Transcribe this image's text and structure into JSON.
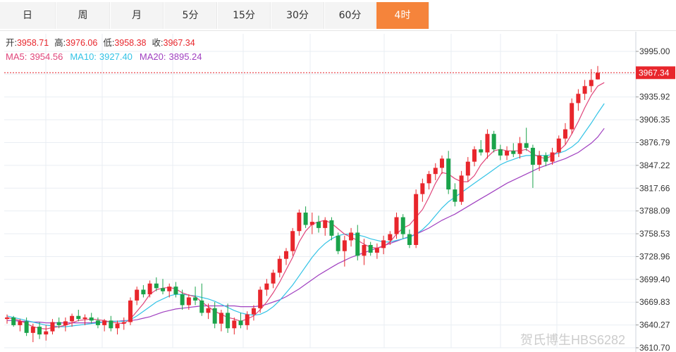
{
  "tabs": [
    {
      "label": "日",
      "active": false
    },
    {
      "label": "周",
      "active": false
    },
    {
      "label": "月",
      "active": false
    },
    {
      "label": "5分",
      "active": false
    },
    {
      "label": "15分",
      "active": false
    },
    {
      "label": "30分",
      "active": false
    },
    {
      "label": "60分",
      "active": false
    },
    {
      "label": "4时",
      "active": true
    }
  ],
  "ohlc_line": {
    "open_label": "开:",
    "open_value": "3958.71",
    "high_label": "高:",
    "high_value": "3976.06",
    "low_label": "低:",
    "low_value": "3958.38",
    "close_label": "收:",
    "close_value": "3967.34"
  },
  "ma_line": {
    "ma5_label": "MA5:",
    "ma5_value": "3954.56",
    "ma10_label": "MA10:",
    "ma10_value": "3927.40",
    "ma20_label": "MA20:",
    "ma20_value": "3895.24"
  },
  "current_price_label": "3967.34",
  "watermark": "贺氏博生HBS6282",
  "colors": {
    "up": "#e8262c",
    "down": "#1aa34a",
    "ma5": "#e0457b",
    "ma10": "#33c3e6",
    "ma20": "#a040c0",
    "active_tab": "#f5843b",
    "grid": "#e9eef3"
  },
  "chart_data": {
    "type": "candlestick",
    "y_ticks": [
      "3995.00",
      "3965.51",
      "3935.92",
      "3906.35",
      "3876.79",
      "3847.22",
      "3817.66",
      "3788.09",
      "3758.53",
      "3728.96",
      "3699.40",
      "3669.83",
      "3640.27",
      "3610.70"
    ],
    "ylim": [
      3610.7,
      3995.0
    ],
    "current_price": 3967.34,
    "candles": [
      [
        3648,
        3654,
        3642,
        3650
      ],
      [
        3650,
        3652,
        3638,
        3640
      ],
      [
        3640,
        3648,
        3632,
        3645
      ],
      [
        3645,
        3650,
        3626,
        3630
      ],
      [
        3630,
        3642,
        3618,
        3638
      ],
      [
        3638,
        3644,
        3622,
        3628
      ],
      [
        3628,
        3640,
        3620,
        3632
      ],
      [
        3632,
        3648,
        3628,
        3644
      ],
      [
        3644,
        3650,
        3636,
        3640
      ],
      [
        3640,
        3650,
        3632,
        3645
      ],
      [
        3645,
        3655,
        3638,
        3652
      ],
      [
        3652,
        3660,
        3645,
        3648
      ],
      [
        3648,
        3654,
        3640,
        3650
      ],
      [
        3650,
        3656,
        3642,
        3646
      ],
      [
        3646,
        3650,
        3636,
        3640
      ],
      [
        3640,
        3648,
        3632,
        3646
      ],
      [
        3646,
        3652,
        3632,
        3636
      ],
      [
        3636,
        3646,
        3628,
        3642
      ],
      [
        3642,
        3650,
        3634,
        3644
      ],
      [
        3644,
        3676,
        3640,
        3672
      ],
      [
        3672,
        3690,
        3666,
        3686
      ],
      [
        3686,
        3692,
        3676,
        3680
      ],
      [
        3680,
        3698,
        3676,
        3694
      ],
      [
        3694,
        3702,
        3684,
        3688
      ],
      [
        3688,
        3700,
        3680,
        3684
      ],
      [
        3684,
        3694,
        3676,
        3690
      ],
      [
        3690,
        3696,
        3676,
        3680
      ],
      [
        3680,
        3686,
        3660,
        3666
      ],
      [
        3666,
        3680,
        3660,
        3676
      ],
      [
        3676,
        3690,
        3666,
        3672
      ],
      [
        3672,
        3694,
        3652,
        3656
      ],
      [
        3656,
        3668,
        3648,
        3662
      ],
      [
        3662,
        3670,
        3636,
        3642
      ],
      [
        3642,
        3660,
        3632,
        3656
      ],
      [
        3656,
        3668,
        3630,
        3636
      ],
      [
        3636,
        3650,
        3628,
        3646
      ],
      [
        3646,
        3656,
        3636,
        3640
      ],
      [
        3640,
        3658,
        3634,
        3654
      ],
      [
        3654,
        3666,
        3646,
        3662
      ],
      [
        3662,
        3690,
        3656,
        3686
      ],
      [
        3686,
        3700,
        3678,
        3694
      ],
      [
        3694,
        3712,
        3688,
        3708
      ],
      [
        3708,
        3730,
        3702,
        3726
      ],
      [
        3726,
        3740,
        3718,
        3736
      ],
      [
        3736,
        3766,
        3730,
        3762
      ],
      [
        3762,
        3790,
        3756,
        3786
      ],
      [
        3786,
        3794,
        3766,
        3770
      ],
      [
        3770,
        3786,
        3758,
        3774
      ],
      [
        3774,
        3782,
        3760,
        3766
      ],
      [
        3766,
        3780,
        3756,
        3776
      ],
      [
        3776,
        3780,
        3750,
        3756
      ],
      [
        3756,
        3760,
        3732,
        3736
      ],
      [
        3736,
        3756,
        3716,
        3750
      ],
      [
        3750,
        3766,
        3742,
        3760
      ],
      [
        3760,
        3770,
        3724,
        3730
      ],
      [
        3730,
        3752,
        3718,
        3744
      ],
      [
        3744,
        3748,
        3730,
        3734
      ],
      [
        3734,
        3746,
        3726,
        3740
      ],
      [
        3740,
        3756,
        3732,
        3750
      ],
      [
        3750,
        3762,
        3744,
        3758
      ],
      [
        3758,
        3786,
        3752,
        3780
      ],
      [
        3780,
        3784,
        3752,
        3758
      ],
      [
        3758,
        3764,
        3740,
        3744
      ],
      [
        3744,
        3816,
        3740,
        3810
      ],
      [
        3810,
        3830,
        3800,
        3824
      ],
      [
        3824,
        3840,
        3816,
        3836
      ],
      [
        3836,
        3850,
        3828,
        3844
      ],
      [
        3844,
        3860,
        3836,
        3856
      ],
      [
        3856,
        3866,
        3810,
        3816
      ],
      [
        3816,
        3824,
        3794,
        3800
      ],
      [
        3800,
        3840,
        3796,
        3834
      ],
      [
        3834,
        3858,
        3826,
        3852
      ],
      [
        3852,
        3872,
        3846,
        3868
      ],
      [
        3868,
        3880,
        3860,
        3864
      ],
      [
        3864,
        3894,
        3856,
        3888
      ],
      [
        3888,
        3892,
        3864,
        3868
      ],
      [
        3868,
        3874,
        3854,
        3860
      ],
      [
        3860,
        3872,
        3854,
        3866
      ],
      [
        3866,
        3876,
        3858,
        3862
      ],
      [
        3862,
        3884,
        3856,
        3876
      ],
      [
        3876,
        3896,
        3866,
        3870
      ],
      [
        3870,
        3874,
        3818,
        3848
      ],
      [
        3848,
        3866,
        3840,
        3860
      ],
      [
        3860,
        3864,
        3846,
        3852
      ],
      [
        3852,
        3870,
        3848,
        3864
      ],
      [
        3864,
        3886,
        3858,
        3882
      ],
      [
        3882,
        3902,
        3874,
        3894
      ],
      [
        3894,
        3934,
        3888,
        3928
      ],
      [
        3928,
        3946,
        3918,
        3940
      ],
      [
        3940,
        3958,
        3932,
        3950
      ],
      [
        3950,
        3972,
        3942,
        3958
      ],
      [
        3958.71,
        3976.06,
        3958.38,
        3967.34
      ]
    ],
    "ma5": [
      3650,
      3648,
      3646,
      3642,
      3638,
      3636,
      3635,
      3637,
      3638,
      3640,
      3643,
      3646,
      3647,
      3648,
      3647,
      3646,
      3644,
      3643,
      3642,
      3648,
      3658,
      3668,
      3680,
      3686,
      3688,
      3689,
      3687,
      3682,
      3679,
      3677,
      3670,
      3664,
      3658,
      3654,
      3650,
      3648,
      3645,
      3648,
      3652,
      3660,
      3670,
      3682,
      3696,
      3712,
      3728,
      3748,
      3762,
      3771,
      3774,
      3776,
      3772,
      3765,
      3758,
      3754,
      3750,
      3745,
      3741,
      3740,
      3742,
      3748,
      3758,
      3766,
      3770,
      3780,
      3790,
      3806,
      3824,
      3838,
      3836,
      3830,
      3826,
      3826,
      3834,
      3848,
      3858,
      3866,
      3868,
      3866,
      3866,
      3866,
      3868,
      3862,
      3858,
      3856,
      3860,
      3866,
      3874,
      3888,
      3904,
      3922,
      3938,
      3950,
      3954.56
    ],
    "ma10": [
      3652,
      3650,
      3648,
      3646,
      3644,
      3642,
      3640,
      3639,
      3638,
      3638,
      3639,
      3640,
      3641,
      3642,
      3643,
      3644,
      3645,
      3645,
      3645,
      3647,
      3652,
      3658,
      3664,
      3670,
      3674,
      3678,
      3680,
      3680,
      3679,
      3678,
      3676,
      3674,
      3671,
      3667,
      3663,
      3659,
      3656,
      3654,
      3653,
      3654,
      3658,
      3664,
      3672,
      3682,
      3692,
      3704,
      3716,
      3728,
      3738,
      3746,
      3752,
      3756,
      3758,
      3758,
      3757,
      3755,
      3752,
      3750,
      3748,
      3748,
      3750,
      3752,
      3754,
      3758,
      3764,
      3772,
      3782,
      3792,
      3800,
      3806,
      3812,
      3818,
      3824,
      3830,
      3836,
      3842,
      3848,
      3852,
      3855,
      3858,
      3860,
      3860,
      3860,
      3860,
      3861,
      3863,
      3866,
      3871,
      3878,
      3890,
      3902,
      3915,
      3927.4
    ],
    "ma20": [
      3646,
      3646,
      3645,
      3645,
      3644,
      3644,
      3643,
      3643,
      3643,
      3643,
      3643,
      3643,
      3643,
      3643,
      3644,
      3644,
      3645,
      3645,
      3646,
      3646,
      3647,
      3649,
      3651,
      3654,
      3657,
      3659,
      3661,
      3662,
      3663,
      3664,
      3665,
      3665,
      3665,
      3665,
      3665,
      3665,
      3664,
      3664,
      3664,
      3665,
      3667,
      3670,
      3673,
      3677,
      3682,
      3687,
      3693,
      3699,
      3705,
      3710,
      3715,
      3720,
      3724,
      3728,
      3731,
      3734,
      3737,
      3740,
      3743,
      3746,
      3749,
      3752,
      3755,
      3758,
      3762,
      3766,
      3771,
      3776,
      3780,
      3784,
      3789,
      3794,
      3799,
      3804,
      3809,
      3814,
      3819,
      3824,
      3828,
      3832,
      3836,
      3840,
      3844,
      3847,
      3850,
      3853,
      3856,
      3860,
      3864,
      3870,
      3876,
      3884,
      3895.24
    ]
  }
}
